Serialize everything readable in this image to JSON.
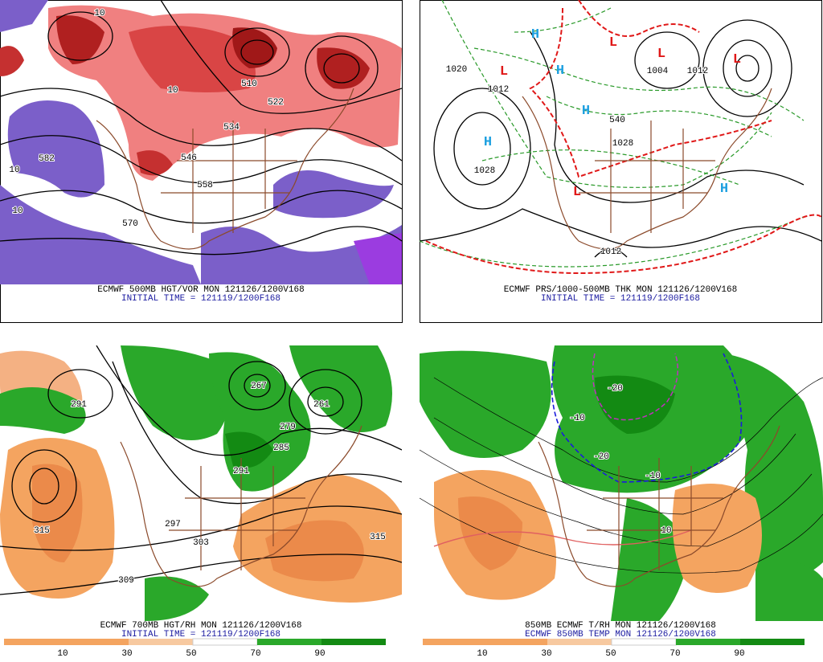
{
  "panels": [
    {
      "caption": [
        "ECMWF 500MB HGT/VOR MON 121126/1200V168",
        "INITIAL TIME = 121119/1200F168"
      ],
      "labels": [
        "10",
        "510",
        "522",
        "534",
        "546",
        "558",
        "570",
        "582",
        "10",
        "10",
        "10"
      ]
    },
    {
      "caption": [
        "ECMWF PRS/1000-500MB THK MON 121126/1200V168",
        "INITIAL TIME = 121119/1200F168"
      ],
      "labels": [
        "1020",
        "1012",
        "1028",
        "1012",
        "1004",
        "1012",
        "1028",
        "540",
        "H",
        "H",
        "H",
        "H",
        "H",
        "L",
        "L",
        "L",
        "L",
        "L"
      ]
    },
    {
      "caption": [
        "ECMWF 700MB HGT/RH MON 121126/1200V168",
        "INITIAL TIME = 121119/1200F168"
      ],
      "labels": [
        "291",
        "315",
        "309",
        "297",
        "303",
        "291",
        "285",
        "279",
        "267",
        "261",
        "315"
      ],
      "colorbar": [
        10,
        30,
        50,
        70,
        90
      ]
    },
    {
      "caption": [
        "850MB ECMWF T/RH MON 121126/1200V168",
        "ECMWF 850MB TEMP MON 121126/1200V168"
      ],
      "labels": [
        "-10",
        "-20",
        "-20",
        "-10",
        "10"
      ],
      "colorbar": [
        10,
        30,
        50,
        70,
        90
      ]
    }
  ]
}
